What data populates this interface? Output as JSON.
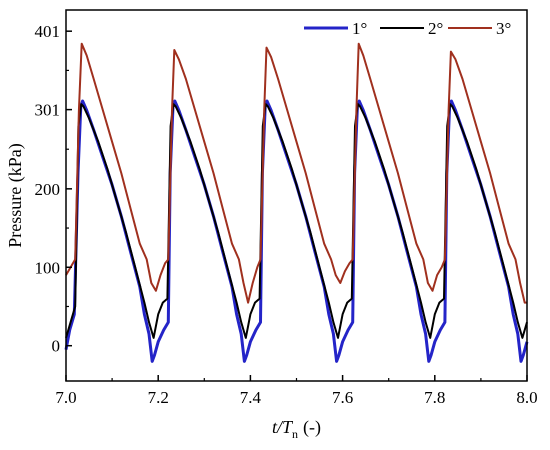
{
  "chart_data": {
    "type": "line",
    "xlabel_italic": "t/T",
    "xlabel_sub": "n",
    "xlabel_unit": "(-)",
    "ylabel": "Pressure (kPa)",
    "xlim": [
      7.0,
      8.0
    ],
    "ylim": [
      -45,
      428
    ],
    "x_ticks": [
      7.0,
      7.2,
      7.4,
      7.6,
      7.8,
      8.0
    ],
    "x_tick_labels": [
      "7.0",
      "7.2",
      "7.4",
      "7.6",
      "7.8",
      "8.0"
    ],
    "y_ticks": [
      0,
      100,
      200,
      301,
      401
    ],
    "y_tick_labels": [
      "0",
      "100",
      "200",
      "301",
      "401"
    ],
    "legend_position": "top-right",
    "series": [
      {
        "name": "1°",
        "color": "#2424c8",
        "x": [
          7.0,
          7.008,
          7.018,
          7.026,
          7.032,
          7.036,
          7.045,
          7.06,
          7.08,
          7.1,
          7.12,
          7.14,
          7.16,
          7.17,
          7.18,
          7.187,
          7.192,
          7.2,
          7.212,
          7.222,
          7.226,
          7.232,
          7.236,
          7.245,
          7.26,
          7.28,
          7.3,
          7.32,
          7.34,
          7.36,
          7.37,
          7.38,
          7.387,
          7.392,
          7.4,
          7.412,
          7.422,
          7.426,
          7.432,
          7.436,
          7.445,
          7.46,
          7.48,
          7.5,
          7.52,
          7.54,
          7.56,
          7.57,
          7.58,
          7.587,
          7.592,
          7.6,
          7.612,
          7.622,
          7.626,
          7.632,
          7.636,
          7.645,
          7.66,
          7.68,
          7.7,
          7.72,
          7.74,
          7.76,
          7.77,
          7.78,
          7.787,
          7.792,
          7.8,
          7.812,
          7.822,
          7.826,
          7.832,
          7.836,
          7.845,
          7.86,
          7.88,
          7.9,
          7.92,
          7.94,
          7.96,
          7.97,
          7.98,
          7.987,
          7.992,
          8.0
        ],
        "values": [
          -5,
          20,
          40,
          220,
          305,
          312,
          300,
          275,
          240,
          205,
          165,
          120,
          75,
          40,
          15,
          -20,
          -12,
          5,
          20,
          30,
          220,
          305,
          312,
          300,
          275,
          240,
          205,
          165,
          120,
          75,
          40,
          15,
          -20,
          -12,
          5,
          20,
          30,
          220,
          305,
          312,
          300,
          275,
          240,
          205,
          165,
          120,
          75,
          40,
          15,
          -20,
          -12,
          5,
          20,
          30,
          220,
          305,
          312,
          300,
          275,
          240,
          205,
          165,
          120,
          75,
          40,
          15,
          -20,
          -12,
          5,
          20,
          30,
          220,
          305,
          312,
          300,
          275,
          240,
          205,
          165,
          120,
          75,
          40,
          15,
          -20,
          -12,
          5
        ]
      },
      {
        "name": "2°",
        "color": "#000000",
        "x": [
          7.0,
          7.01,
          7.02,
          7.027,
          7.033,
          7.038,
          7.05,
          7.07,
          7.09,
          7.11,
          7.13,
          7.15,
          7.17,
          7.18,
          7.19,
          7.2,
          7.21,
          7.22,
          7.227,
          7.233,
          7.238,
          7.25,
          7.27,
          7.29,
          7.31,
          7.33,
          7.35,
          7.37,
          7.38,
          7.39,
          7.4,
          7.41,
          7.42,
          7.427,
          7.433,
          7.438,
          7.45,
          7.47,
          7.49,
          7.51,
          7.53,
          7.55,
          7.57,
          7.58,
          7.59,
          7.6,
          7.61,
          7.62,
          7.627,
          7.633,
          7.638,
          7.65,
          7.67,
          7.69,
          7.71,
          7.73,
          7.75,
          7.77,
          7.78,
          7.79,
          7.8,
          7.81,
          7.82,
          7.827,
          7.833,
          7.838,
          7.85,
          7.87,
          7.89,
          7.91,
          7.93,
          7.95,
          7.97,
          7.98,
          7.99,
          8.0
        ],
        "values": [
          10,
          30,
          50,
          280,
          308,
          305,
          290,
          260,
          225,
          185,
          145,
          100,
          55,
          30,
          10,
          40,
          55,
          60,
          280,
          308,
          305,
          290,
          260,
          225,
          185,
          145,
          100,
          55,
          30,
          10,
          40,
          55,
          60,
          280,
          308,
          305,
          290,
          260,
          225,
          185,
          145,
          100,
          55,
          30,
          10,
          40,
          55,
          60,
          280,
          308,
          305,
          290,
          260,
          225,
          185,
          145,
          100,
          55,
          30,
          10,
          40,
          55,
          60,
          280,
          308,
          305,
          290,
          260,
          225,
          185,
          145,
          100,
          55,
          30,
          10,
          30
        ]
      },
      {
        "name": "3°",
        "color": "#a0301e",
        "x": [
          7.0,
          7.01,
          7.02,
          7.028,
          7.034,
          7.045,
          7.06,
          7.08,
          7.1,
          7.12,
          7.14,
          7.16,
          7.175,
          7.185,
          7.195,
          7.205,
          7.215,
          7.222,
          7.23,
          7.235,
          7.245,
          7.26,
          7.28,
          7.3,
          7.32,
          7.34,
          7.36,
          7.375,
          7.385,
          7.395,
          7.405,
          7.415,
          7.422,
          7.43,
          7.435,
          7.445,
          7.46,
          7.48,
          7.5,
          7.52,
          7.54,
          7.56,
          7.575,
          7.585,
          7.595,
          7.605,
          7.615,
          7.622,
          7.63,
          7.635,
          7.645,
          7.66,
          7.68,
          7.7,
          7.72,
          7.74,
          7.76,
          7.775,
          7.785,
          7.795,
          7.805,
          7.815,
          7.822,
          7.83,
          7.835,
          7.845,
          7.86,
          7.88,
          7.9,
          7.92,
          7.94,
          7.96,
          7.975,
          7.985,
          7.995,
          8.0
        ],
        "values": [
          90,
          100,
          110,
          300,
          385,
          370,
          340,
          300,
          260,
          220,
          175,
          130,
          110,
          80,
          70,
          90,
          105,
          110,
          300,
          377,
          365,
          340,
          300,
          260,
          220,
          175,
          130,
          110,
          80,
          55,
          80,
          100,
          110,
          300,
          380,
          368,
          340,
          300,
          260,
          220,
          175,
          130,
          110,
          90,
          80,
          95,
          105,
          110,
          300,
          385,
          370,
          340,
          300,
          260,
          220,
          175,
          130,
          110,
          80,
          70,
          90,
          100,
          110,
          300,
          375,
          365,
          340,
          300,
          260,
          220,
          175,
          130,
          110,
          80,
          55,
          55
        ]
      }
    ]
  }
}
